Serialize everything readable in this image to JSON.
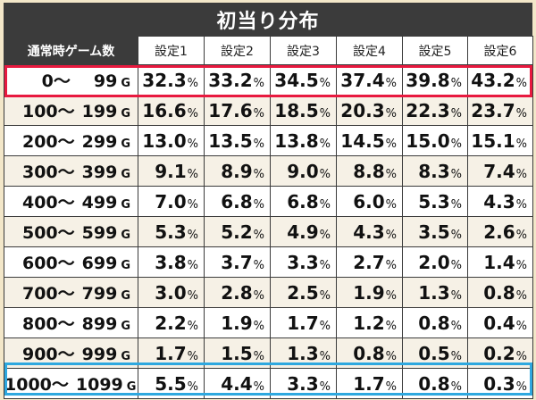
{
  "title": "初当り分布",
  "table": {
    "corner_header": "通常時ゲーム数",
    "columns": [
      "設定1",
      "設定2",
      "設定3",
      "設定4",
      "設定5",
      "設定6"
    ],
    "game_suffix": "G",
    "percent_suffix": "%",
    "rows": [
      {
        "from": "0〜",
        "to": "99",
        "values": [
          "32.3",
          "33.2",
          "34.5",
          "37.4",
          "39.8",
          "43.2"
        ]
      },
      {
        "from": "100〜",
        "to": "199",
        "values": [
          "16.6",
          "17.6",
          "18.5",
          "20.3",
          "22.3",
          "23.7"
        ]
      },
      {
        "from": "200〜",
        "to": "299",
        "values": [
          "13.0",
          "13.5",
          "13.8",
          "14.5",
          "15.0",
          "15.1"
        ]
      },
      {
        "from": "300〜",
        "to": "399",
        "values": [
          "9.1",
          "8.9",
          "9.0",
          "8.8",
          "8.3",
          "7.4"
        ]
      },
      {
        "from": "400〜",
        "to": "499",
        "values": [
          "7.0",
          "6.8",
          "6.8",
          "6.0",
          "5.3",
          "4.3"
        ]
      },
      {
        "from": "500〜",
        "to": "599",
        "values": [
          "5.3",
          "5.2",
          "4.9",
          "4.3",
          "3.5",
          "2.6"
        ]
      },
      {
        "from": "600〜",
        "to": "699",
        "values": [
          "3.8",
          "3.7",
          "3.3",
          "2.7",
          "2.0",
          "1.4"
        ]
      },
      {
        "from": "700〜",
        "to": "799",
        "values": [
          "3.0",
          "2.8",
          "2.5",
          "1.9",
          "1.3",
          "0.8"
        ]
      },
      {
        "from": "800〜",
        "to": "899",
        "values": [
          "2.2",
          "1.9",
          "1.7",
          "1.2",
          "0.8",
          "0.4"
        ]
      },
      {
        "from": "900〜",
        "to": "999",
        "values": [
          "1.7",
          "1.5",
          "1.3",
          "0.8",
          "0.5",
          "0.2"
        ]
      },
      {
        "from": "1000〜",
        "to": "1099",
        "values": [
          "5.5",
          "4.4",
          "3.3",
          "1.7",
          "0.8",
          "0.3"
        ]
      }
    ]
  },
  "highlights": {
    "first_row_color": "#e8193f",
    "last_row_color": "#2ea8df"
  },
  "colors": {
    "header_bg": "#3b3b3b",
    "page_bg": "#f3e7c9"
  }
}
